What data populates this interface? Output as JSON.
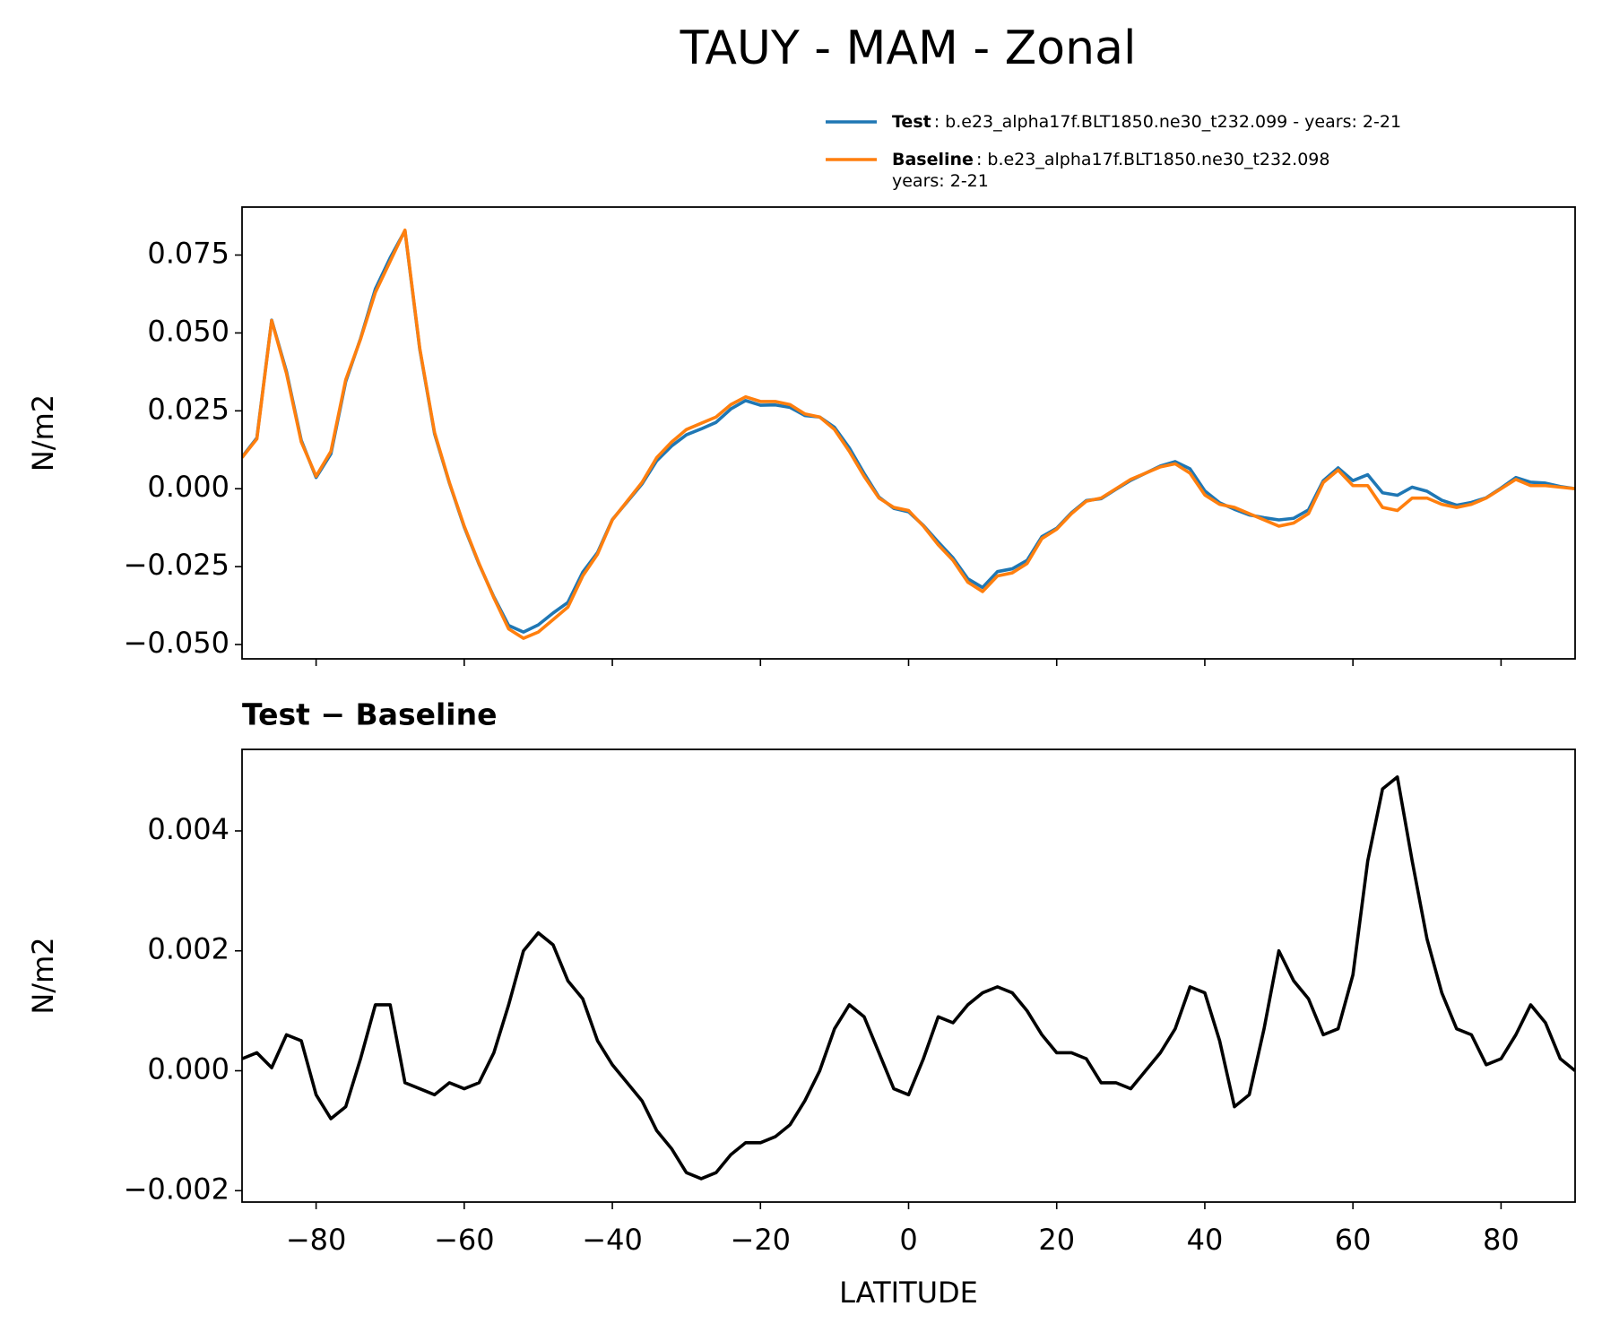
{
  "chart_data": [
    {
      "type": "line",
      "title": "TAUY - MAM - Zonal",
      "ylabel": "N/m2",
      "x": [
        -90,
        -88,
        -86,
        -84,
        -82,
        -80,
        -78,
        -76,
        -74,
        -72,
        -70,
        -68,
        -66,
        -64,
        -62,
        -60,
        -58,
        -56,
        -54,
        -52,
        -50,
        -48,
        -46,
        -44,
        -42,
        -40,
        -38,
        -36,
        -34,
        -32,
        -30,
        -28,
        -26,
        -24,
        -22,
        -20,
        -18,
        -16,
        -14,
        -12,
        -10,
        -8,
        -6,
        -4,
        -2,
        0,
        2,
        4,
        6,
        8,
        10,
        12,
        14,
        16,
        18,
        20,
        22,
        24,
        26,
        28,
        30,
        32,
        34,
        36,
        38,
        40,
        42,
        44,
        46,
        48,
        50,
        52,
        54,
        56,
        58,
        60,
        62,
        64,
        66,
        68,
        70,
        72,
        74,
        76,
        78,
        80,
        82,
        84,
        86,
        88,
        90
      ],
      "series": [
        {
          "name": "Test",
          "description": [
            ": b.e23_alpha17f.BLT1850.ne30_t232.099 - years: 2-21"
          ],
          "color": "#1f77b4",
          "values": [
            0.0102,
            0.0163,
            0.0541,
            0.0376,
            0.0155,
            0.0036,
            0.0112,
            0.0344,
            0.0482,
            0.0641,
            0.0741,
            0.0828,
            0.0447,
            0.0176,
            0.0018,
            -0.0123,
            -0.0242,
            -0.0347,
            -0.0439,
            -0.046,
            -0.0437,
            -0.0399,
            -0.0365,
            -0.0268,
            -0.0205,
            -0.0099,
            -0.0042,
            0.0015,
            0.009,
            0.0137,
            0.0173,
            0.0192,
            0.0213,
            0.0256,
            0.0283,
            0.0268,
            0.0269,
            0.0261,
            0.0235,
            0.023,
            0.0197,
            0.0131,
            0.0049,
            -0.0027,
            -0.0063,
            -0.0074,
            -0.0118,
            -0.0171,
            -0.0222,
            -0.0289,
            -0.0317,
            -0.0266,
            -0.0257,
            -0.023,
            -0.0154,
            -0.0127,
            -0.0077,
            -0.0038,
            -0.0032,
            -0.0002,
            0.0027,
            0.005,
            0.0073,
            0.0087,
            0.0064,
            -0.0007,
            -0.0045,
            -0.0066,
            -0.0084,
            -0.0093,
            -0.01,
            -0.0095,
            -0.0068,
            0.0026,
            0.0067,
            0.0026,
            0.0045,
            -0.0013,
            -0.0021,
            0.0005,
            -0.0008,
            -0.0037,
            -0.0053,
            -0.0044,
            -0.0029,
            0.0002,
            0.0036,
            0.0021,
            0.0018,
            0.0007,
            0.0
          ]
        },
        {
          "name": "Baseline",
          "description": [
            ": b.e23_alpha17f.BLT1850.ne30_t232.098",
            "years: 2-21"
          ],
          "color": "#ff7f0e",
          "values": [
            0.01,
            0.016,
            0.054,
            0.037,
            0.015,
            0.004,
            0.012,
            0.035,
            0.048,
            0.063,
            0.073,
            0.083,
            0.045,
            0.018,
            0.002,
            -0.012,
            -0.024,
            -0.035,
            -0.045,
            -0.048,
            -0.046,
            -0.042,
            -0.038,
            -0.028,
            -0.021,
            -0.01,
            -0.004,
            0.002,
            0.01,
            0.015,
            0.019,
            0.021,
            0.023,
            0.027,
            0.0295,
            0.028,
            0.028,
            0.027,
            0.024,
            0.023,
            0.019,
            0.012,
            0.004,
            -0.003,
            -0.006,
            -0.007,
            -0.012,
            -0.018,
            -0.023,
            -0.03,
            -0.033,
            -0.028,
            -0.027,
            -0.024,
            -0.016,
            -0.013,
            -0.008,
            -0.004,
            -0.003,
            0.0,
            0.003,
            0.005,
            0.007,
            0.008,
            0.005,
            -0.002,
            -0.005,
            -0.006,
            -0.008,
            -0.01,
            -0.012,
            -0.011,
            -0.008,
            0.002,
            0.006,
            0.001,
            0.001,
            -0.006,
            -0.007,
            -0.003,
            -0.003,
            -0.005,
            -0.006,
            -0.005,
            -0.003,
            0.0,
            0.003,
            0.001,
            0.001,
            0.0005,
            0.0
          ]
        }
      ],
      "xlim": [
        -90,
        90
      ],
      "ylim": [
        -0.0546,
        0.0904
      ],
      "yticks": [
        {
          "value": -0.05,
          "label": "−0.050"
        },
        {
          "value": -0.025,
          "label": "−0.025"
        },
        {
          "value": 0,
          "label": "0.000"
        },
        0.025,
        {
          "value": 0.05,
          "label": "0.050"
        },
        0.075
      ],
      "legend": "upper right"
    },
    {
      "type": "line",
      "title": "Test − Baseline",
      "ylabel": "N/m2",
      "xlabel": "LATITUDE",
      "x": [
        -90,
        -88,
        -86,
        -84,
        -82,
        -80,
        -78,
        -76,
        -74,
        -72,
        -70,
        -68,
        -66,
        -64,
        -62,
        -60,
        -58,
        -56,
        -54,
        -52,
        -50,
        -48,
        -46,
        -44,
        -42,
        -40,
        -38,
        -36,
        -34,
        -32,
        -30,
        -28,
        -26,
        -24,
        -22,
        -20,
        -18,
        -16,
        -14,
        -12,
        -10,
        -8,
        -6,
        -4,
        -2,
        0,
        2,
        4,
        6,
        8,
        10,
        12,
        14,
        16,
        18,
        20,
        22,
        24,
        26,
        28,
        30,
        32,
        34,
        36,
        38,
        40,
        42,
        44,
        46,
        48,
        50,
        52,
        54,
        56,
        58,
        60,
        62,
        64,
        66,
        68,
        70,
        72,
        74,
        76,
        78,
        80,
        82,
        84,
        86,
        88,
        90
      ],
      "series": [
        {
          "color": "#000000",
          "values": [
            0.0002,
            0.0003,
            5e-05,
            0.0006,
            0.0005,
            -0.0004,
            -0.0008,
            -0.0006,
            0.0002,
            0.0011,
            0.0011,
            -0.0002,
            -0.0003,
            -0.0004,
            -0.0002,
            -0.0003,
            -0.0002,
            0.0003,
            0.0011,
            0.002,
            0.0023,
            0.0021,
            0.0015,
            0.0012,
            0.0005,
            0.0001,
            -0.0002,
            -0.0005,
            -0.001,
            -0.0013,
            -0.0017,
            -0.0018,
            -0.0017,
            -0.0014,
            -0.0012,
            -0.0012,
            -0.0011,
            -0.0009,
            -0.0005,
            0.0,
            0.0007,
            0.0011,
            0.0009,
            0.0003,
            -0.0003,
            -0.0004,
            0.0002,
            0.0009,
            0.0008,
            0.0011,
            0.0013,
            0.0014,
            0.0013,
            0.001,
            0.0006,
            0.0003,
            0.0003,
            0.0002,
            -0.0002,
            -0.0002,
            -0.0003,
            0.0,
            0.0003,
            0.0007,
            0.0014,
            0.0013,
            0.0005,
            -0.0006,
            -0.0004,
            0.0007,
            0.002,
            0.0015,
            0.0012,
            0.0006,
            0.0007,
            0.0016,
            0.0035,
            0.0047,
            0.0049,
            0.0035,
            0.0022,
            0.0013,
            0.0007,
            0.0006,
            0.0001,
            0.0002,
            0.0006,
            0.0011,
            0.0008,
            0.0002,
            0.0
          ]
        }
      ],
      "xlim": [
        -90,
        90
      ],
      "ylim": [
        -0.00219,
        0.00536
      ],
      "xticks": [
        {
          "value": -80,
          "label": "−80"
        },
        {
          "value": -60,
          "label": "−60"
        },
        {
          "value": -40,
          "label": "−40"
        },
        {
          "value": -20,
          "label": "−20"
        },
        0,
        20,
        40,
        60,
        80
      ],
      "yticks": [
        {
          "value": -0.002,
          "label": "−0.002"
        },
        {
          "value": 0,
          "label": "0.000"
        },
        0.002,
        0.004
      ]
    }
  ]
}
